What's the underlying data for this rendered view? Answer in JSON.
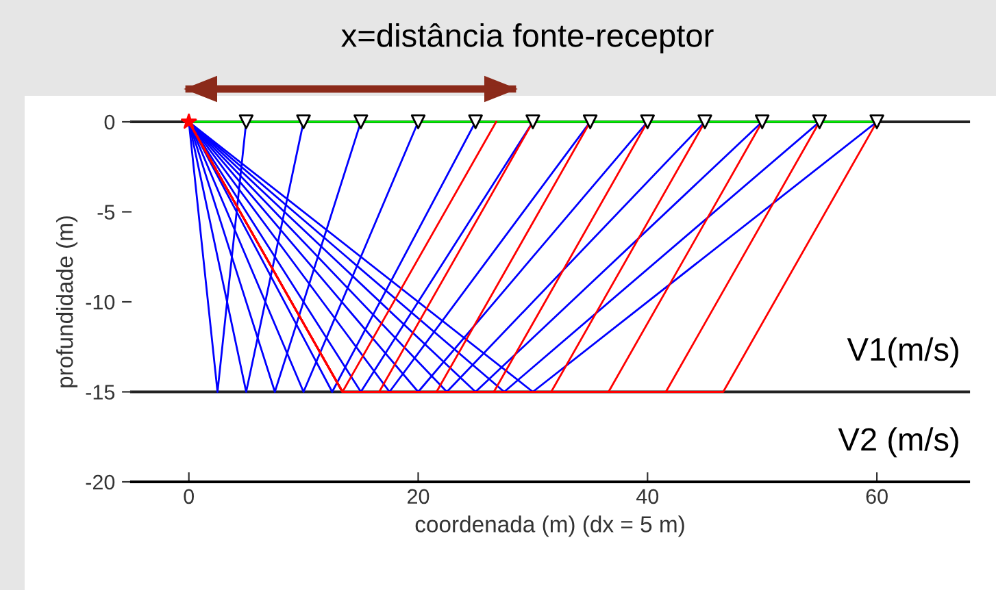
{
  "chart_data": {
    "type": "line",
    "title": "x=distância fonte-receptor",
    "xlabel": "coordenada (m) (dx = 5 m)",
    "ylabel": "profundidade (m)",
    "xlim": [
      -5,
      68
    ],
    "ylim": [
      -20,
      0
    ],
    "xticks": [
      0,
      20,
      40,
      60
    ],
    "yticks": [
      0,
      -5,
      -10,
      -15,
      -20
    ],
    "grid": false,
    "legend": false,
    "line_style": "solid",
    "annotations": [
      "V1(m/s)",
      "V2 (m/s)"
    ],
    "ref_lines": [
      {
        "axis": "y",
        "value": -15,
        "color": "#222222"
      }
    ],
    "series": [
      {
        "color": "#00ee00",
        "x": [
          0,
          60
        ],
        "values": [
          0,
          0
        ],
        "marker": "none"
      },
      {
        "color": "#0000ff",
        "x": [
          0,
          2.5,
          5
        ],
        "values": [
          0,
          -15,
          0
        ],
        "marker": "none"
      },
      {
        "color": "#0000ff",
        "x": [
          0,
          5,
          10
        ],
        "values": [
          0,
          -15,
          0
        ],
        "marker": "none"
      },
      {
        "color": "#0000ff",
        "x": [
          0,
          7.5,
          15
        ],
        "values": [
          0,
          -15,
          0
        ],
        "marker": "none"
      },
      {
        "color": "#0000ff",
        "x": [
          0,
          10,
          20
        ],
        "values": [
          0,
          -15,
          0
        ],
        "marker": "none"
      },
      {
        "color": "#0000ff",
        "x": [
          0,
          12.5,
          25
        ],
        "values": [
          0,
          -15,
          0
        ],
        "marker": "none"
      },
      {
        "color": "#0000ff",
        "x": [
          0,
          15,
          30
        ],
        "values": [
          0,
          -15,
          0
        ],
        "marker": "none"
      },
      {
        "color": "#0000ff",
        "x": [
          0,
          17.5,
          35
        ],
        "values": [
          0,
          -15,
          0
        ],
        "marker": "none"
      },
      {
        "color": "#0000ff",
        "x": [
          0,
          20,
          40
        ],
        "values": [
          0,
          -15,
          0
        ],
        "marker": "none"
      },
      {
        "color": "#0000ff",
        "x": [
          0,
          22.5,
          45
        ],
        "values": [
          0,
          -15,
          0
        ],
        "marker": "none"
      },
      {
        "color": "#0000ff",
        "x": [
          0,
          25,
          50
        ],
        "values": [
          0,
          -15,
          0
        ],
        "marker": "none"
      },
      {
        "color": "#0000ff",
        "x": [
          0,
          27.5,
          55
        ],
        "values": [
          0,
          -15,
          0
        ],
        "marker": "none"
      },
      {
        "color": "#0000ff",
        "x": [
          0,
          30,
          60
        ],
        "values": [
          0,
          -15,
          0
        ],
        "marker": "none"
      },
      {
        "color": "#ff0000",
        "x": [
          0,
          13.4,
          13.4,
          26.8
        ],
        "values": [
          0,
          -15,
          -15,
          0
        ],
        "marker": "none"
      },
      {
        "color": "#ff0000",
        "x": [
          0,
          13.4,
          16.6,
          30
        ],
        "values": [
          0,
          -15,
          -15,
          0
        ],
        "marker": "none"
      },
      {
        "color": "#ff0000",
        "x": [
          0,
          13.4,
          21.6,
          35
        ],
        "values": [
          0,
          -15,
          -15,
          0
        ],
        "marker": "none"
      },
      {
        "color": "#ff0000",
        "x": [
          0,
          13.4,
          26.6,
          40
        ],
        "values": [
          0,
          -15,
          -15,
          0
        ],
        "marker": "none"
      },
      {
        "color": "#ff0000",
        "x": [
          0,
          13.4,
          31.6,
          45
        ],
        "values": [
          0,
          -15,
          -15,
          0
        ],
        "marker": "none"
      },
      {
        "color": "#ff0000",
        "x": [
          0,
          13.4,
          36.6,
          50
        ],
        "values": [
          0,
          -15,
          -15,
          0
        ],
        "marker": "none"
      },
      {
        "color": "#ff0000",
        "x": [
          0,
          13.4,
          41.6,
          55
        ],
        "values": [
          0,
          -15,
          -15,
          0
        ],
        "marker": "none"
      },
      {
        "color": "#ff0000",
        "x": [
          0,
          13.4,
          46.6,
          60
        ],
        "values": [
          0,
          -15,
          -15,
          0
        ],
        "marker": "none"
      },
      {
        "type": "scatter",
        "color": "#ffffff",
        "x": [
          5,
          10,
          15,
          20,
          25,
          30,
          35,
          40,
          45,
          50,
          55,
          60
        ],
        "values": [
          0,
          0,
          0,
          0,
          0,
          0,
          0,
          0,
          0,
          0,
          0,
          0
        ],
        "marker": "triangle"
      },
      {
        "type": "scatter",
        "color": "#ff0000",
        "x": [
          0
        ],
        "values": [
          0
        ],
        "marker": "star"
      }
    ]
  }
}
